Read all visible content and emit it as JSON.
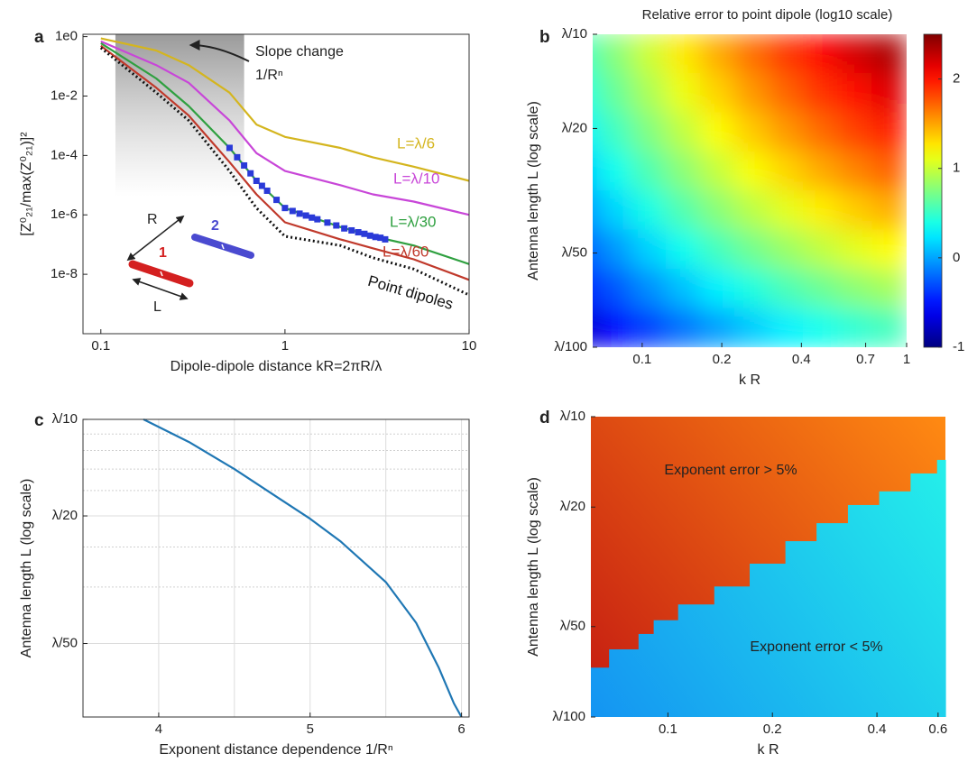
{
  "chart_data": [
    {
      "type": "line",
      "panel_label": "a",
      "xlabel": "Dipole-dipole distance kR=2πR/λ",
      "ylabel": "[Z⁰₂₁/max(Z⁰₂₁)]²",
      "xscale": "log",
      "yscale": "log",
      "xlim": [
        0.08,
        10
      ],
      "ylim": [
        1e-10,
        1.2
      ],
      "xticks": [
        0.1,
        1,
        10
      ],
      "yticks": [
        {
          "value": 1,
          "label": "1e0"
        },
        {
          "value": 0.01,
          "label": "1e-2"
        },
        {
          "value": 0.0001,
          "label": "1e-4"
        },
        {
          "value": 1e-06,
          "label": "1e-6"
        },
        {
          "value": 1e-08,
          "label": "1e-8"
        }
      ],
      "shaded_x": [
        0.12,
        0.6
      ],
      "annotations": [
        "Slope change",
        "1/Rⁿ"
      ],
      "inset": {
        "distance": "R",
        "length": "L",
        "dipole_1": "1",
        "dipole_2": "2"
      },
      "x": [
        0.1,
        0.2,
        0.3,
        0.5,
        0.7,
        1,
        2,
        3,
        5,
        10
      ],
      "series": [
        {
          "name": "L=λ/6",
          "color": "#d4b51e",
          "values": [
            0.87,
            0.34,
            0.11,
            0.013,
            0.0011,
            0.00042,
            0.00018,
            8.7e-05,
            4.2e-05,
            1.4e-05
          ]
        },
        {
          "name": "L=λ/10",
          "color": "#c846d8",
          "values": [
            0.69,
            0.11,
            0.028,
            0.0015,
            0.00012,
            3e-05,
            1e-05,
            4.9e-06,
            2.8e-06,
            1e-06
          ]
        },
        {
          "name": "L=λ/30",
          "color": "#2fa040",
          "values": [
            0.6,
            0.039,
            0.0046,
            0.00018,
            1.4e-05,
            1.7e-06,
            3.9e-07,
            1.9e-07,
            9.3e-08,
            2.2e-08
          ]
        },
        {
          "name": "L=λ/60",
          "color": "#c0392b",
          "values": [
            0.49,
            0.019,
            0.0022,
            6e-05,
            4.9e-06,
            5.6e-07,
            1.5e-07,
            7.5e-08,
            3.2e-08,
            6.5e-09
          ]
        },
        {
          "name": "Point dipoles",
          "color": "#111111",
          "dash": true,
          "values": [
            0.42,
            0.013,
            0.0015,
            3e-05,
            1.7e-06,
            1.9e-07,
            9.3e-08,
            3.6e-08,
            1.5e-08,
            2e-09
          ]
        },
        {
          "color": "#2a3ad8",
          "marker": "square",
          "x": [
            0.5,
            0.55,
            0.6,
            0.65,
            0.7,
            0.75,
            0.8,
            0.9,
            1,
            1.1,
            1.2,
            1.3,
            1.4,
            1.5,
            1.7,
            1.9,
            2.1,
            2.3,
            2.5,
            2.7,
            2.9,
            3.1,
            3.3,
            3.5
          ],
          "values": [
            0.00018,
            8.7e-05,
            4.6e-05,
            2.5e-05,
            1.4e-05,
            9.5e-06,
            6.5e-06,
            3.2e-06,
            1.7e-06,
            1.35e-06,
            1.1e-06,
            9.5e-07,
            8.1e-07,
            7.1e-07,
            5.5e-07,
            4.4e-07,
            3.5e-07,
            3e-07,
            2.6e-07,
            2.3e-07,
            2e-07,
            1.8e-07,
            1.7e-07,
            1.5e-07
          ]
        }
      ]
    },
    {
      "type": "heatmap",
      "panel_label": "b",
      "title": "Relative error to point dipole (log10 scale)",
      "xlabel": "k R",
      "ylabel": "Antenna length L (log scale)",
      "xscale": "log",
      "yscale": "log",
      "xlim": [
        0.065,
        1
      ],
      "ylim": [
        0.01,
        0.1
      ],
      "xticks": [
        0.1,
        0.2,
        0.4,
        0.7,
        1
      ],
      "yticks": [
        {
          "value": 0.1,
          "label": "λ/10"
        },
        {
          "value": 0.05,
          "label": "λ/20"
        },
        {
          "value": 0.02,
          "label": "λ/50"
        },
        {
          "value": 0.01,
          "label": "λ/100"
        }
      ],
      "colormap": "jet",
      "clim": [
        -1,
        2.5
      ],
      "cticks": [
        -1,
        0,
        1,
        2
      ],
      "x": [
        0.058,
        0.079,
        0.106,
        0.143,
        0.193,
        0.26,
        0.351,
        0.473,
        0.638,
        0.861
      ],
      "y": [
        0.0866,
        0.0649,
        0.0487,
        0.0365,
        0.0274,
        0.0205,
        0.0154,
        0.0115
      ],
      "z": [
        [
          0.5,
          0.77,
          1.02,
          1.26,
          1.48,
          1.69,
          1.88,
          2.05,
          2.21,
          2.35
        ],
        [
          0.4,
          0.66,
          0.9,
          1.13,
          1.34,
          1.54,
          1.72,
          1.89,
          2.03,
          2.17
        ],
        [
          0.27,
          0.52,
          0.75,
          0.97,
          1.18,
          1.37,
          1.54,
          1.7,
          1.84,
          1.96
        ],
        [
          0.11,
          0.36,
          0.58,
          0.79,
          0.99,
          1.17,
          1.33,
          1.48,
          1.61,
          1.73
        ],
        [
          -0.07,
          0.17,
          0.39,
          0.59,
          0.78,
          0.95,
          1.1,
          1.24,
          1.36,
          1.47
        ],
        [
          -0.27,
          -0.05,
          0.16,
          0.36,
          0.54,
          0.7,
          0.84,
          0.97,
          1.09,
          1.19
        ],
        [
          -0.5,
          -0.28,
          -0.08,
          0.1,
          0.27,
          0.42,
          0.56,
          0.68,
          0.79,
          0.88
        ],
        [
          -0.76,
          -0.55,
          -0.36,
          -0.18,
          -0.02,
          0.13,
          0.26,
          0.37,
          0.46,
          0.54
        ]
      ]
    },
    {
      "type": "line",
      "panel_label": "c",
      "xlabel": "Exponent distance dependence 1/Rⁿ",
      "ylabel": "Antenna length L (log scale)",
      "yscale": "log",
      "xlim": [
        3.5,
        6.05
      ],
      "ylim": [
        0.0118,
        0.1
      ],
      "xticks": [
        4,
        5,
        6
      ],
      "minor_xticks": [
        4.5,
        5.5
      ],
      "yticks": [
        {
          "value": 0.1,
          "label": "λ/10"
        },
        {
          "value": 0.05,
          "label": "λ/20"
        },
        {
          "value": 0.02,
          "label": "λ/50"
        }
      ],
      "minor_yticks": [
        0.09,
        0.08,
        0.07,
        0.06,
        0.04,
        0.03
      ],
      "grid": true,
      "x": [
        3.9,
        4.2,
        4.5,
        4.8,
        5.0,
        5.2,
        5.5,
        5.7,
        5.85,
        5.95,
        6.0
      ],
      "series": [
        {
          "color": "#1f77b4",
          "values": [
            0.1,
            0.085,
            0.07,
            0.0565,
            0.049,
            0.0417,
            0.0311,
            0.0232,
            0.0168,
            0.013,
            0.0118
          ]
        }
      ]
    },
    {
      "type": "region",
      "panel_label": "d",
      "xlabel": "k R",
      "ylabel": "Antenna length L (log scale)",
      "xscale": "log",
      "yscale": "log",
      "xlim": [
        0.06,
        0.63
      ],
      "ylim": [
        0.01,
        0.1
      ],
      "xticks": [
        0.1,
        0.2,
        0.4,
        0.6
      ],
      "yticks": [
        {
          "value": 0.1,
          "label": "λ/10"
        },
        {
          "value": 0.05,
          "label": "λ/20"
        },
        {
          "value": 0.02,
          "label": "λ/50"
        },
        {
          "value": 0.01,
          "label": "λ/100"
        }
      ],
      "x": [
        0.06,
        0.0677,
        0.0823,
        0.091,
        0.107,
        0.136,
        0.172,
        0.218,
        0.268,
        0.33,
        0.406,
        0.5,
        0.596
      ],
      "boundary": [
        0.0146,
        0.0168,
        0.0189,
        0.021,
        0.0237,
        0.0272,
        0.0324,
        0.0385,
        0.0442,
        0.0508,
        0.0564,
        0.0647,
        0.0718
      ],
      "regions": [
        {
          "label": "Exponent error > 5%",
          "colors": [
            "#ff8a12",
            "#c41a12"
          ]
        },
        {
          "label": "Exponent error < 5%",
          "colors": [
            "#24eeea",
            "#1494f2"
          ]
        }
      ]
    }
  ]
}
